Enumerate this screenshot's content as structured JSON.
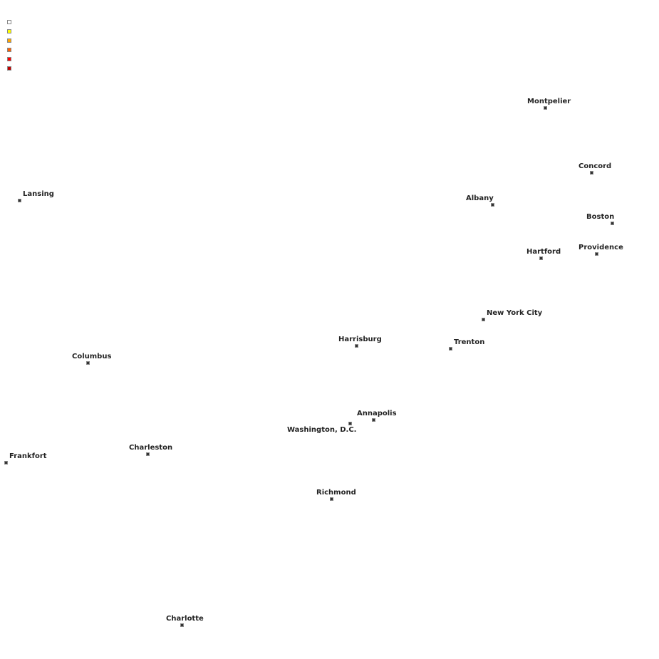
{
  "legend": {
    "swatches": [
      {
        "color": "#ffffff"
      },
      {
        "color": "#ffff00"
      },
      {
        "color": "#ffa500"
      },
      {
        "color": "#ff6000"
      },
      {
        "color": "#ff0000"
      },
      {
        "color": "#c00000"
      }
    ]
  },
  "marker_color": "#333333",
  "cities": [
    {
      "name": "Montpelier"
    },
    {
      "name": "Concord"
    },
    {
      "name": "Albany"
    },
    {
      "name": "Boston"
    },
    {
      "name": "Providence"
    },
    {
      "name": "Hartford"
    },
    {
      "name": "New York City"
    },
    {
      "name": "Trenton"
    },
    {
      "name": "Harrisburg"
    },
    {
      "name": "Columbus"
    },
    {
      "name": "Lansing"
    },
    {
      "name": "Annapolis"
    },
    {
      "name": "Washington, D.C."
    },
    {
      "name": "Frankfort"
    },
    {
      "name": "Charleston"
    },
    {
      "name": "Richmond"
    },
    {
      "name": "Charlotte"
    }
  ]
}
